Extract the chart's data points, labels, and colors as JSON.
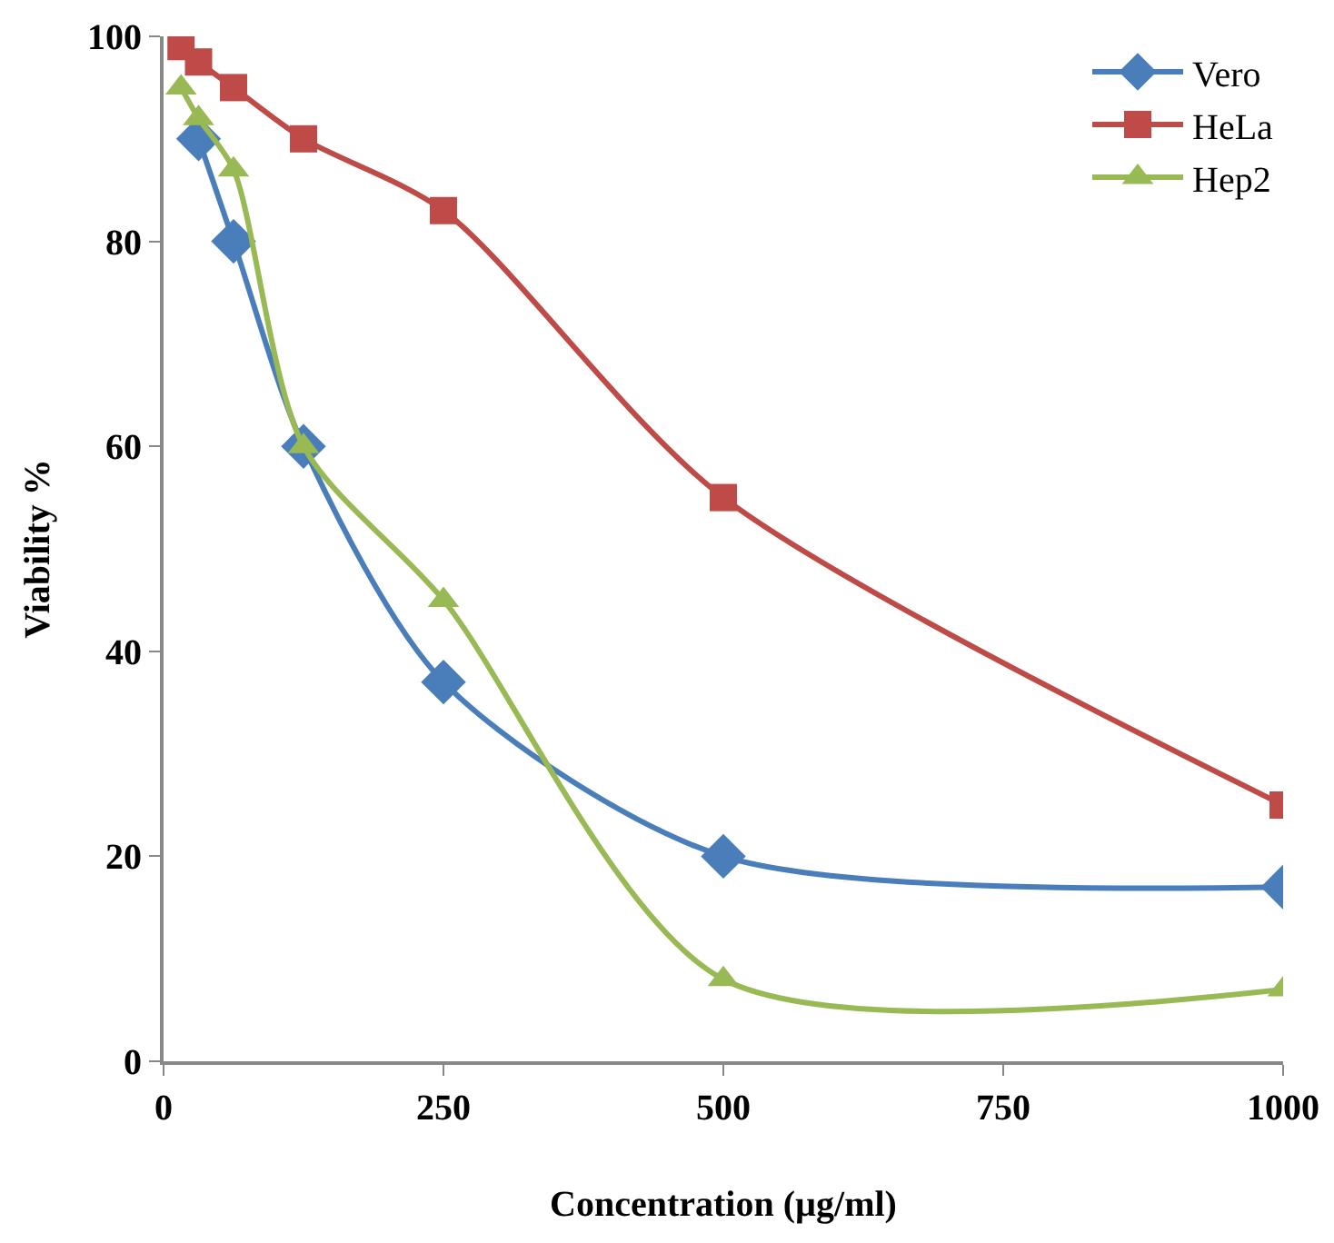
{
  "chart_data": {
    "type": "line",
    "xlabel": "Concentration (µg/ml)",
    "ylabel": "Viability %",
    "xlim": [
      0,
      1000
    ],
    "xticks": [
      0,
      250,
      500,
      750,
      1000
    ],
    "ylim": [
      0,
      100
    ],
    "yticks": [
      0,
      20,
      40,
      60,
      80,
      100
    ],
    "grid": false,
    "legend": "top right",
    "line_style": "solid",
    "series": [
      {
        "name": "Vero",
        "color": "#4a7ebb",
        "marker": "diamond",
        "x": [
          31.25,
          62.5,
          125,
          250,
          500,
          1000
        ],
        "values": [
          90,
          80,
          60,
          37,
          20,
          17
        ]
      },
      {
        "name": "HeLa",
        "color": "#be4b48",
        "marker": "square",
        "x": [
          15.6,
          31.25,
          62.5,
          125,
          250,
          500,
          1000
        ],
        "values": [
          99,
          97.5,
          95,
          90,
          83,
          55,
          25
        ]
      },
      {
        "name": "Hep2",
        "color": "#98b954",
        "marker": "triangle",
        "x": [
          15.6,
          31.25,
          62.5,
          125,
          250,
          500,
          1000
        ],
        "values": [
          95,
          92,
          87,
          60,
          45,
          8,
          7
        ]
      }
    ]
  }
}
